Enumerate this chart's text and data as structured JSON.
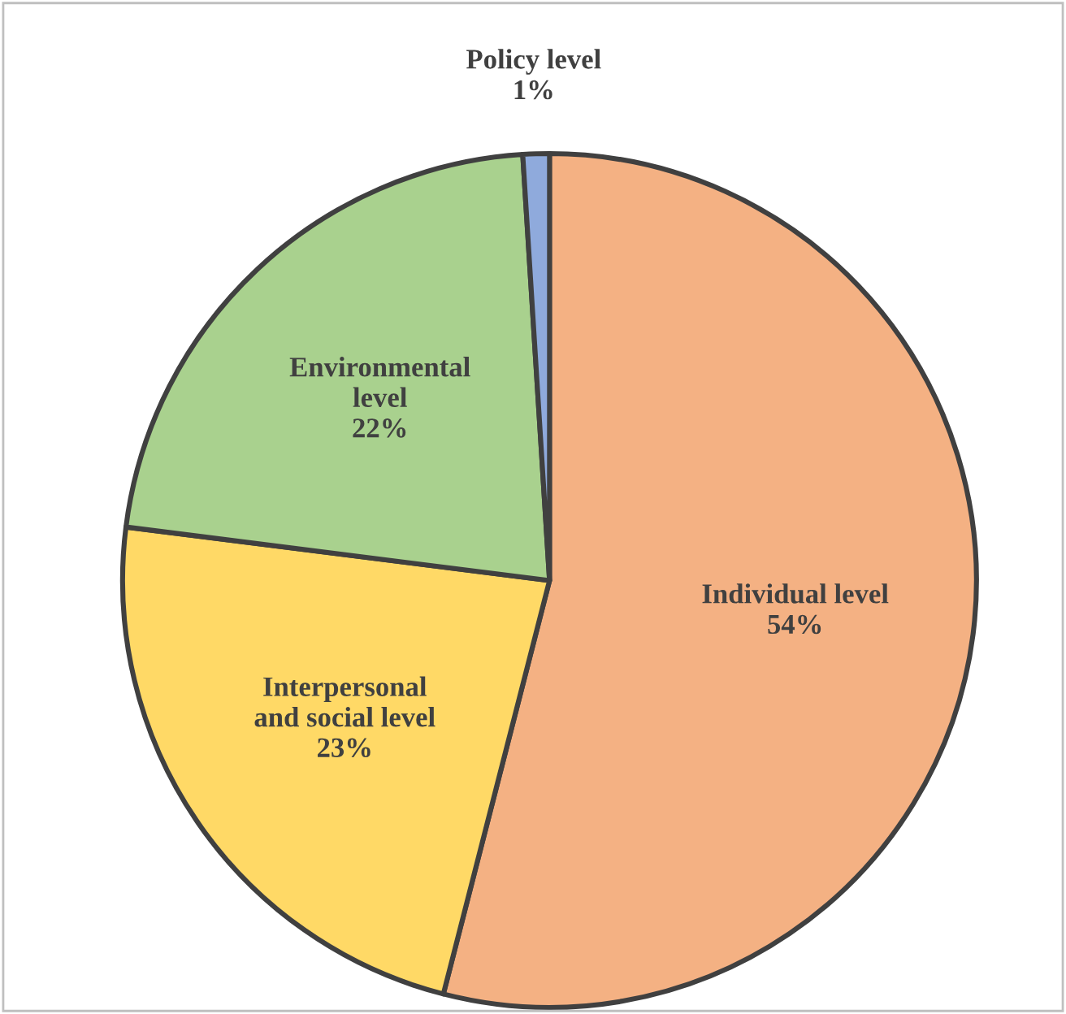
{
  "chart_data": {
    "type": "pie",
    "categories": [
      "Individual level",
      "Interpersonal\nand social level",
      "Environmental\nlevel",
      "Policy level"
    ],
    "values": [
      54,
      23,
      22,
      1
    ],
    "value_labels": [
      "54%",
      "23%",
      "22%",
      "1%"
    ],
    "colors": [
      "#f4b183",
      "#ffd966",
      "#a9d18e",
      "#8faadc"
    ],
    "legend": false
  }
}
